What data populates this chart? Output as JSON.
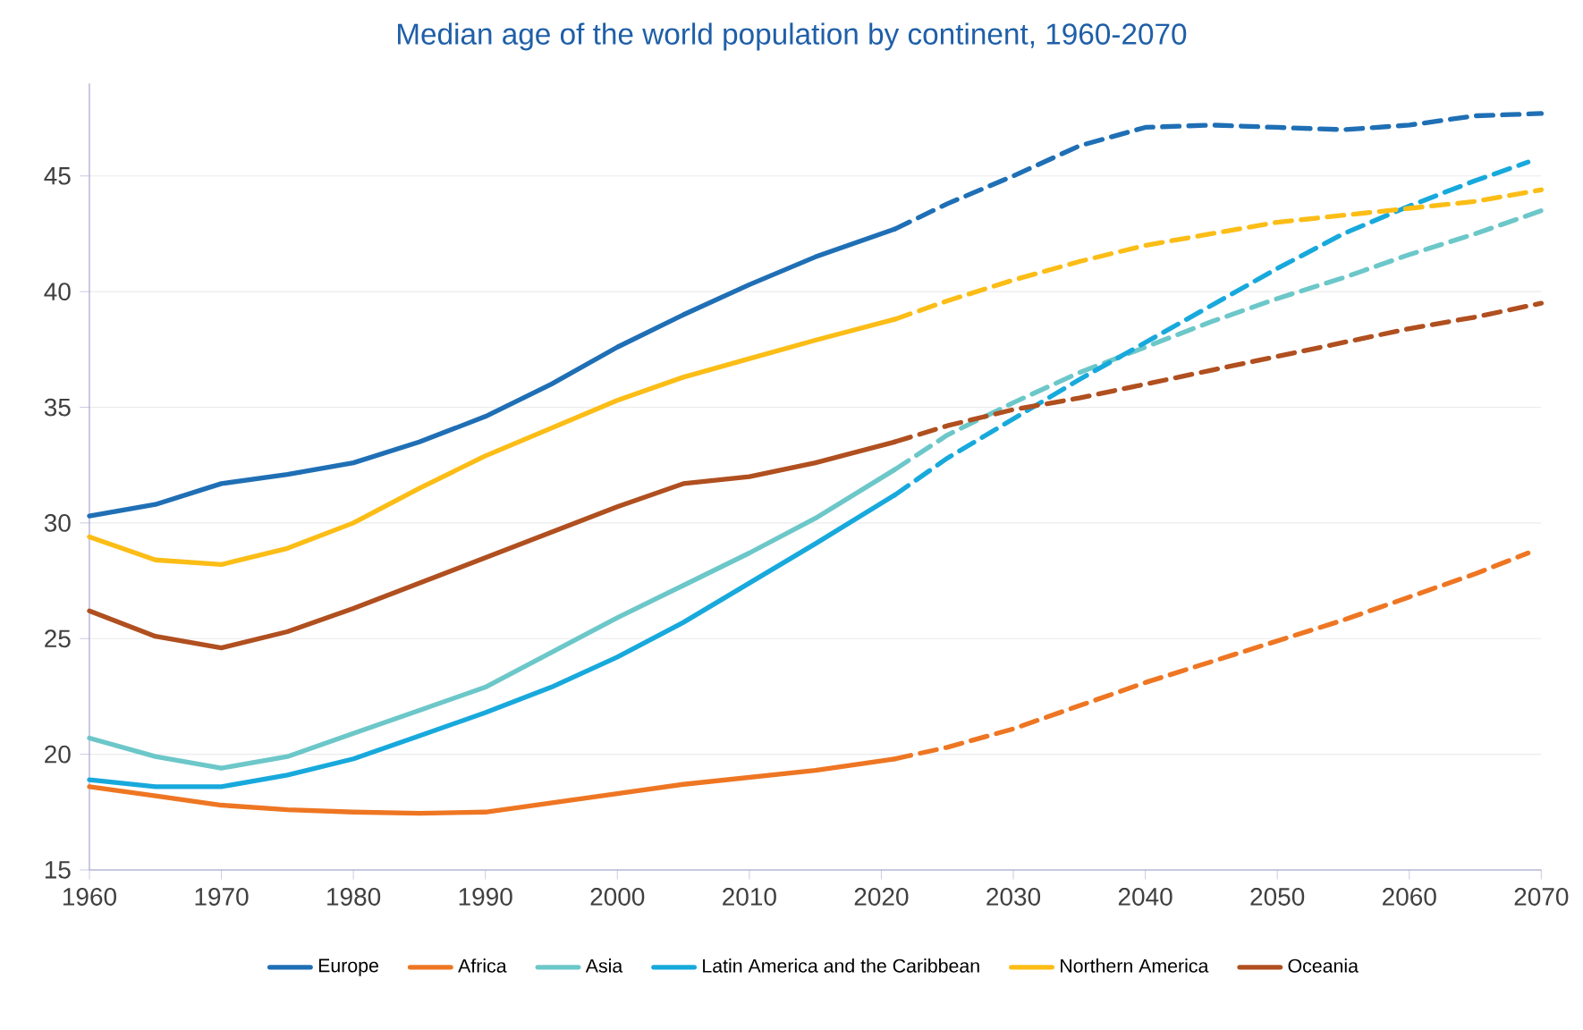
{
  "chart_data": {
    "type": "line",
    "title": "Median age of the world population by continent, 1960-2070",
    "xlim": [
      1960,
      2070
    ],
    "ylim": [
      15,
      49
    ],
    "xticks": [
      1960,
      1970,
      1980,
      1990,
      2000,
      2010,
      2020,
      2030,
      2040,
      2050,
      2060,
      2070
    ],
    "yticks": [
      15,
      20,
      25,
      30,
      35,
      40,
      45
    ],
    "grid": "y",
    "legend": "bottom",
    "marker": "none",
    "series": [
      {
        "name": "Europe",
        "color": "#1f6fb5",
        "line_style": "solid",
        "x": [
          1960,
          1965,
          1970,
          1975,
          1980,
          1985,
          1990,
          1995,
          2000,
          2005,
          2010,
          2015,
          2021
        ],
        "values": [
          30.3,
          30.8,
          31.7,
          32.1,
          32.6,
          33.5,
          34.6,
          36.0,
          37.6,
          39.0,
          40.3,
          41.5,
          42.7
        ]
      },
      {
        "color": "#1f6fb5",
        "line_style": "dashed",
        "x": [
          2021,
          2025,
          2030,
          2035,
          2040,
          2045,
          2050,
          2055,
          2060,
          2065,
          2070
        ],
        "values": [
          42.7,
          43.8,
          45.0,
          46.3,
          47.1,
          47.2,
          47.1,
          47.0,
          47.2,
          47.6,
          47.7
        ]
      },
      {
        "name": "Africa",
        "color": "#ee7623",
        "line_style": "solid",
        "x": [
          1960,
          1965,
          1970,
          1975,
          1980,
          1985,
          1990,
          1995,
          2000,
          2005,
          2010,
          2015,
          2021
        ],
        "values": [
          18.6,
          18.2,
          17.8,
          17.6,
          17.5,
          17.45,
          17.5,
          17.9,
          18.3,
          18.7,
          19.0,
          19.3,
          19.8
        ]
      },
      {
        "color": "#ee7623",
        "line_style": "dashed",
        "x": [
          2021,
          2025,
          2030,
          2035,
          2040,
          2045,
          2050,
          2055,
          2060,
          2065,
          2069
        ],
        "values": [
          19.8,
          20.3,
          21.1,
          22.1,
          23.1,
          24.0,
          24.9,
          25.8,
          26.8,
          27.8,
          28.7
        ]
      },
      {
        "name": "Asia",
        "color": "#6cc7c9",
        "line_style": "solid",
        "x": [
          1960,
          1965,
          1970,
          1975,
          1980,
          1985,
          1990,
          1995,
          2000,
          2005,
          2010,
          2015,
          2021
        ],
        "values": [
          20.7,
          19.9,
          19.4,
          19.9,
          20.9,
          21.9,
          22.9,
          24.4,
          25.9,
          27.3,
          28.7,
          30.2,
          32.3
        ]
      },
      {
        "color": "#6cc7c9",
        "line_style": "dashed",
        "x": [
          2021,
          2025,
          2030,
          2035,
          2040,
          2045,
          2050,
          2055,
          2060,
          2065,
          2070
        ],
        "values": [
          32.3,
          33.8,
          35.2,
          36.5,
          37.6,
          38.7,
          39.7,
          40.6,
          41.6,
          42.5,
          43.5
        ]
      },
      {
        "name": "Latin America and the Caribbean",
        "color": "#18a9dc",
        "line_style": "solid",
        "x": [
          1960,
          1965,
          1970,
          1975,
          1980,
          1985,
          1990,
          1995,
          2000,
          2005,
          2010,
          2015,
          2021
        ],
        "values": [
          18.9,
          18.6,
          18.6,
          19.1,
          19.8,
          20.8,
          21.8,
          22.9,
          24.2,
          25.7,
          27.4,
          29.1,
          31.2
        ]
      },
      {
        "color": "#18a9dc",
        "line_style": "dashed",
        "x": [
          2021,
          2025,
          2030,
          2035,
          2040,
          2045,
          2050,
          2055,
          2060,
          2065,
          2069
        ],
        "values": [
          31.2,
          32.8,
          34.5,
          36.2,
          37.8,
          39.4,
          41.0,
          42.5,
          43.7,
          44.8,
          45.6
        ]
      },
      {
        "name": "Northern America",
        "color": "#fbbd16",
        "line_style": "solid",
        "x": [
          1960,
          1965,
          1970,
          1975,
          1980,
          1985,
          1990,
          1995,
          2000,
          2005,
          2010,
          2015,
          2021
        ],
        "values": [
          29.4,
          28.4,
          28.2,
          28.9,
          30.0,
          31.5,
          32.9,
          34.1,
          35.3,
          36.3,
          37.1,
          37.9,
          38.8
        ]
      },
      {
        "color": "#fbbd16",
        "line_style": "dashed",
        "x": [
          2021,
          2025,
          2030,
          2035,
          2040,
          2045,
          2050,
          2055,
          2060,
          2065,
          2070
        ],
        "values": [
          38.8,
          39.6,
          40.5,
          41.3,
          42.0,
          42.5,
          43.0,
          43.3,
          43.6,
          43.9,
          44.4
        ]
      },
      {
        "name": "Oceania",
        "color": "#b04f1f",
        "line_style": "solid",
        "x": [
          1960,
          1965,
          1970,
          1975,
          1980,
          1985,
          1990,
          1995,
          2000,
          2005,
          2010,
          2015,
          2021
        ],
        "values": [
          26.2,
          25.1,
          24.6,
          25.3,
          26.3,
          27.4,
          28.5,
          29.6,
          30.7,
          31.7,
          32.0,
          32.6,
          33.5
        ]
      },
      {
        "color": "#b04f1f",
        "line_style": "dashed",
        "x": [
          2021,
          2025,
          2030,
          2035,
          2040,
          2045,
          2050,
          2055,
          2060,
          2065,
          2070
        ],
        "values": [
          33.5,
          34.2,
          34.9,
          35.4,
          36.0,
          36.6,
          37.2,
          37.8,
          38.4,
          38.9,
          39.5
        ]
      }
    ]
  }
}
